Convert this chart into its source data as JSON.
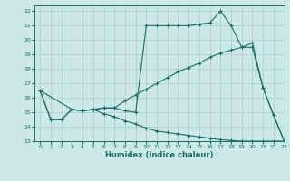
{
  "xlabel": "Humidex (Indice chaleur)",
  "background_color": "#cce8e8",
  "grid_color": "#aacccc",
  "line_color": "#1a6b6b",
  "xlim": [
    -0.5,
    23
  ],
  "ylim": [
    13,
    22.4
  ],
  "yticks": [
    13,
    14,
    15,
    16,
    17,
    18,
    19,
    20,
    21,
    22
  ],
  "xticks": [
    0,
    1,
    2,
    3,
    4,
    5,
    6,
    7,
    8,
    9,
    10,
    11,
    12,
    13,
    14,
    15,
    16,
    17,
    18,
    19,
    20,
    21,
    22,
    23
  ],
  "line1_x": [
    0,
    1,
    2,
    3,
    4,
    5,
    6,
    7,
    8,
    9,
    10,
    11,
    12,
    13,
    14,
    15,
    16,
    17,
    18,
    19,
    20,
    21,
    22,
    23
  ],
  "line1_y": [
    16.5,
    14.5,
    14.5,
    15.2,
    15.1,
    15.2,
    15.3,
    15.3,
    15.1,
    15.0,
    21.0,
    21.0,
    21.0,
    21.0,
    21.0,
    21.1,
    21.2,
    22.0,
    21.0,
    19.5,
    19.8,
    16.7,
    14.8,
    13.0
  ],
  "line2_x": [
    0,
    3,
    4,
    5,
    6,
    7,
    8,
    9,
    10,
    11,
    12,
    13,
    14,
    15,
    16,
    17,
    18,
    19,
    20,
    21,
    22,
    23
  ],
  "line2_y": [
    16.5,
    15.2,
    15.1,
    15.2,
    15.3,
    15.3,
    15.8,
    16.2,
    16.6,
    17.0,
    17.4,
    17.8,
    18.1,
    18.4,
    18.8,
    19.1,
    19.3,
    19.5,
    19.5,
    16.7,
    14.8,
    13.0
  ],
  "line3_x": [
    0,
    1,
    2,
    3,
    4,
    5,
    6,
    7,
    8,
    9,
    10,
    11,
    12,
    13,
    14,
    15,
    16,
    17,
    18,
    19,
    20,
    21,
    22,
    23
  ],
  "line3_y": [
    16.5,
    14.5,
    14.5,
    15.2,
    15.1,
    15.2,
    14.9,
    14.7,
    14.4,
    14.2,
    13.9,
    13.7,
    13.6,
    13.5,
    13.4,
    13.3,
    13.2,
    13.1,
    13.05,
    13.0,
    13.0,
    13.0,
    13.0,
    13.0
  ]
}
